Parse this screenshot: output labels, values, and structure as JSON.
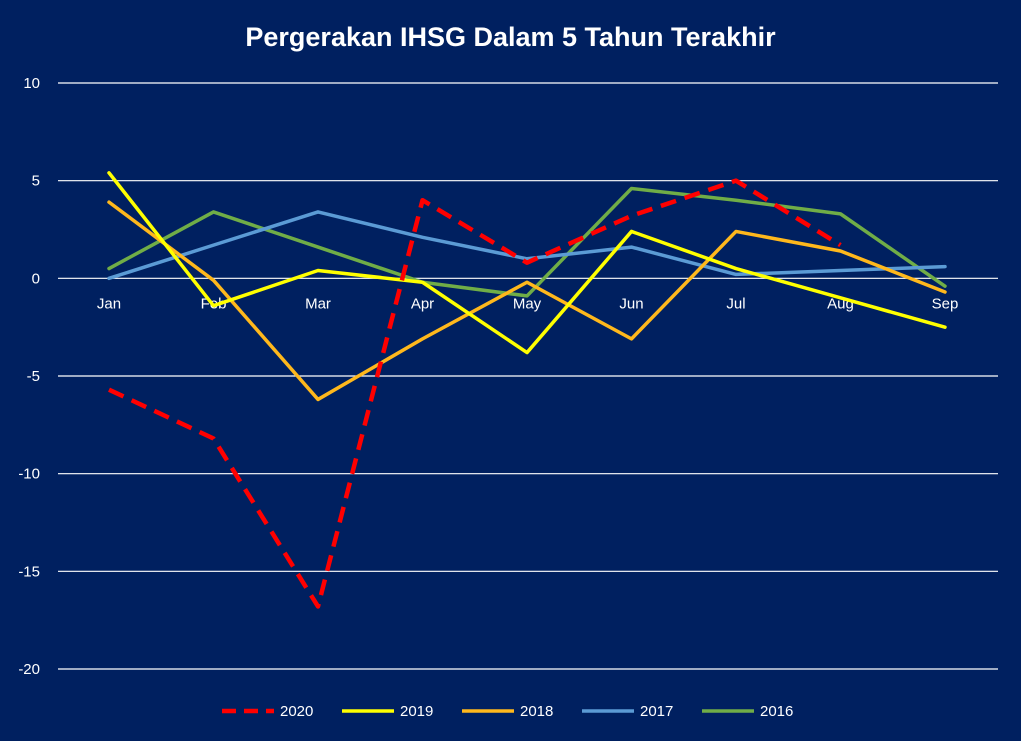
{
  "chart_data": {
    "type": "line",
    "title": "Pergerakan IHSG Dalam 5 Tahun Terakhir",
    "categories": [
      "Jan",
      "Feb",
      "Mar",
      "Apr",
      "May",
      "Jun",
      "Jul",
      "Aug",
      "Sep"
    ],
    "ylim": [
      -20,
      10
    ],
    "yticks": [
      "10",
      "5",
      "0",
      "-5",
      "-10",
      "-15",
      "-20"
    ],
    "grid": true,
    "legend_position": "bottom",
    "series": [
      {
        "name": "2020",
        "color": "#ff0000",
        "dashed": true,
        "values": [
          -5.7,
          -8.2,
          -16.8,
          4.0,
          0.8,
          3.2,
          5.0,
          1.7,
          null
        ]
      },
      {
        "name": "2019",
        "color": "#ffff00",
        "dashed": false,
        "values": [
          5.4,
          -1.4,
          0.4,
          -0.2,
          -3.8,
          2.4,
          0.5,
          -1.0,
          -2.5
        ]
      },
      {
        "name": "2018",
        "color": "#ffb81c",
        "dashed": false,
        "values": [
          3.9,
          -0.1,
          -6.2,
          -3.1,
          -0.2,
          -3.1,
          2.4,
          1.4,
          -0.7
        ]
      },
      {
        "name": "2017",
        "color": "#5b9bd5",
        "dashed": false,
        "values": [
          0.0,
          1.7,
          3.4,
          2.1,
          1.0,
          1.6,
          0.2,
          0.4,
          0.6
        ]
      },
      {
        "name": "2016",
        "color": "#70ad47",
        "dashed": false,
        "values": [
          0.5,
          3.4,
          1.6,
          -0.2,
          -0.9,
          4.6,
          4.0,
          3.3,
          -0.4
        ]
      }
    ]
  }
}
